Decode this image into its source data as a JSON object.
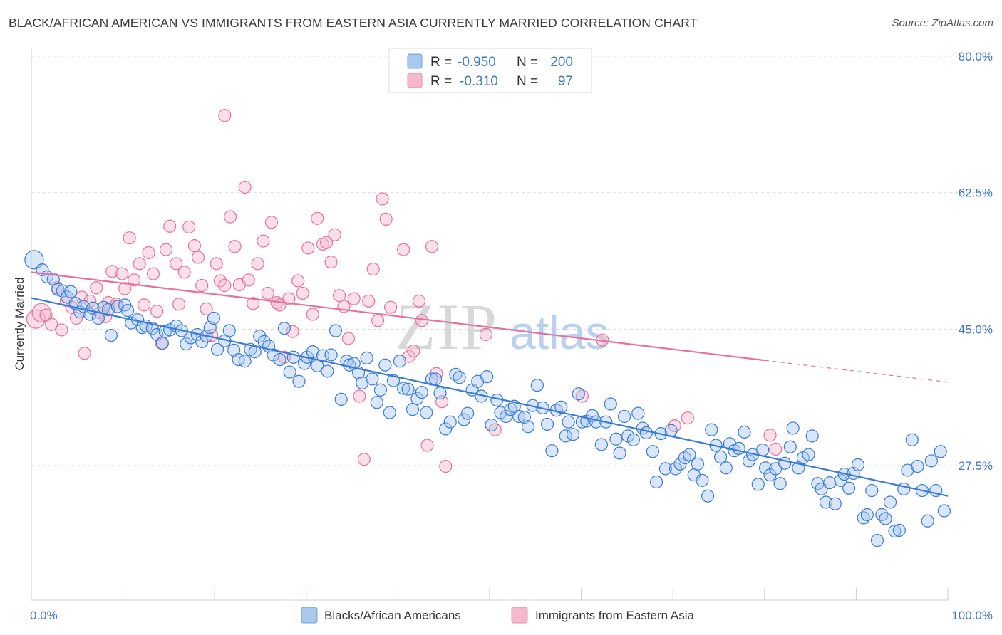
{
  "title": "BLACK/AFRICAN AMERICAN VS IMMIGRANTS FROM EASTERN ASIA CURRENTLY MARRIED CORRELATION CHART",
  "source": "Source: ZipAtlas.com",
  "watermark": {
    "part1": "ZIP",
    "part2": "atlas"
  },
  "colors": {
    "blue": "#3a7bd5",
    "blue_fill": "#a9c8ef",
    "pink": "#e8709c",
    "pink_fill": "#f5b8cc",
    "tick": "#3a78c9"
  },
  "legend_top": [
    {
      "r_label": "R =",
      "r_value": "-0.950",
      "n_label": "N =",
      "n_value": "200"
    },
    {
      "r_label": "R =",
      "r_value": "-0.310",
      "n_label": "N =",
      "n_value": "97"
    }
  ],
  "chart_data": {
    "type": "scatter",
    "title": "BLACK/AFRICAN AMERICAN VS IMMIGRANTS FROM EASTERN ASIA CURRENTLY MARRIED CORRELATION CHART",
    "xlabel": "",
    "ylabel": "Currently Married",
    "xlim": [
      0,
      100
    ],
    "ylim": [
      14,
      82
    ],
    "x_tick_labels": [
      "0.0%",
      "100.0%"
    ],
    "y_ticks": [
      27.5,
      45.0,
      62.5,
      80.0
    ],
    "y_tick_labels": [
      "27.5%",
      "45.0%",
      "62.5%",
      "80.0%"
    ],
    "grid": "horizontal dashed",
    "legend_position": "bottom",
    "series": [
      {
        "name": "Blacks/African Americans",
        "color": "#3a7bd5",
        "r": -0.95,
        "n": 200,
        "trend": {
          "x": [
            0,
            100
          ],
          "y": [
            49.0,
            23.6
          ]
        },
        "points": [
          [
            0.3,
            53.9
          ],
          [
            1.2,
            52.6
          ],
          [
            1.7,
            51.7
          ],
          [
            2.4,
            51.4
          ],
          [
            2.9,
            50.1
          ],
          [
            3.4,
            49.9
          ],
          [
            3.9,
            49.1
          ],
          [
            4.3,
            49.8
          ],
          [
            4.8,
            48.3
          ],
          [
            5.3,
            47.2
          ],
          [
            5.7,
            47.9
          ],
          [
            6.4,
            46.9
          ],
          [
            6.7,
            47.7
          ],
          [
            7.3,
            46.4
          ],
          [
            7.9,
            47.8
          ],
          [
            8.4,
            47.5
          ],
          [
            8.7,
            44.2
          ],
          [
            9.4,
            47.9
          ],
          [
            10.2,
            48.1
          ],
          [
            10.5,
            47.4
          ],
          [
            10.9,
            45.8
          ],
          [
            11.6,
            46.2
          ],
          [
            12.1,
            45.2
          ],
          [
            12.5,
            45.4
          ],
          [
            13.2,
            45.1
          ],
          [
            13.7,
            44.3
          ],
          [
            14.3,
            43.2
          ],
          [
            14.6,
            44.7
          ],
          [
            15.1,
            44.9
          ],
          [
            15.8,
            45.4
          ],
          [
            16.4,
            44.8
          ],
          [
            16.9,
            43.1
          ],
          [
            17.4,
            43.9
          ],
          [
            18.1,
            44.3
          ],
          [
            18.6,
            43.4
          ],
          [
            19.1,
            44.1
          ],
          [
            19.5,
            45.2
          ],
          [
            19.9,
            46.4
          ],
          [
            20.3,
            42.4
          ],
          [
            21.1,
            43.5
          ],
          [
            21.6,
            44.8
          ],
          [
            22.1,
            42.3
          ],
          [
            22.6,
            41.1
          ],
          [
            23.3,
            40.9
          ],
          [
            23.9,
            42.4
          ],
          [
            24.4,
            42.1
          ],
          [
            24.9,
            44.1
          ],
          [
            25.4,
            43.4
          ],
          [
            25.9,
            42.8
          ],
          [
            26.4,
            41.7
          ],
          [
            27.1,
            41.1
          ],
          [
            27.6,
            45.1
          ],
          [
            28.2,
            39.5
          ],
          [
            28.6,
            41.4
          ],
          [
            29.2,
            38.3
          ],
          [
            29.8,
            40.6
          ],
          [
            30.1,
            41.4
          ],
          [
            30.7,
            42.1
          ],
          [
            31.2,
            40.3
          ],
          [
            31.8,
            41.6
          ],
          [
            32.3,
            39.6
          ],
          [
            32.7,
            41.7
          ],
          [
            33.2,
            44.8
          ],
          [
            33.8,
            36.0
          ],
          [
            34.4,
            40.9
          ],
          [
            34.7,
            40.4
          ],
          [
            35.2,
            40.6
          ],
          [
            35.7,
            39.4
          ],
          [
            36.1,
            38.1
          ],
          [
            36.6,
            41.3
          ],
          [
            37.2,
            38.6
          ],
          [
            37.7,
            35.6
          ],
          [
            38.1,
            37.2
          ],
          [
            38.6,
            40.4
          ],
          [
            39.1,
            34.3
          ],
          [
            39.5,
            38.4
          ],
          [
            40.2,
            40.9
          ],
          [
            40.6,
            37.4
          ],
          [
            41.1,
            37.3
          ],
          [
            41.6,
            34.7
          ],
          [
            42.1,
            36.1
          ],
          [
            42.6,
            36.9
          ],
          [
            43.1,
            34.3
          ],
          [
            43.7,
            38.6
          ],
          [
            44.1,
            38.6
          ],
          [
            44.6,
            36.8
          ],
          [
            45.2,
            32.2
          ],
          [
            45.7,
            33.1
          ],
          [
            46.3,
            39.2
          ],
          [
            46.7,
            38.8
          ],
          [
            47.2,
            33.4
          ],
          [
            47.6,
            34.2
          ],
          [
            48.1,
            37.2
          ],
          [
            48.7,
            38.3
          ],
          [
            49.1,
            36.4
          ],
          [
            49.7,
            38.9
          ],
          [
            50.2,
            32.7
          ],
          [
            50.8,
            35.9
          ],
          [
            51.2,
            34.3
          ],
          [
            51.8,
            33.8
          ],
          [
            52.3,
            34.7
          ],
          [
            52.7,
            35.1
          ],
          [
            53.2,
            33.8
          ],
          [
            53.8,
            33.7
          ],
          [
            54.2,
            32.5
          ],
          [
            54.7,
            35.2
          ],
          [
            55.2,
            37.8
          ],
          [
            55.8,
            34.9
          ],
          [
            56.3,
            32.8
          ],
          [
            56.8,
            29.4
          ],
          [
            57.3,
            34.6
          ],
          [
            57.8,
            35.0
          ],
          [
            58.3,
            31.3
          ],
          [
            58.6,
            33.1
          ],
          [
            59.1,
            31.5
          ],
          [
            59.7,
            36.7
          ],
          [
            60.1,
            33.1
          ],
          [
            60.6,
            33.2
          ],
          [
            61.2,
            33.9
          ],
          [
            61.6,
            33.1
          ],
          [
            62.2,
            30.2
          ],
          [
            62.7,
            33.1
          ],
          [
            63.2,
            35.4
          ],
          [
            63.8,
            30.9
          ],
          [
            64.2,
            29.1
          ],
          [
            64.7,
            33.8
          ],
          [
            65.1,
            31.3
          ],
          [
            65.7,
            30.8
          ],
          [
            66.2,
            34.2
          ],
          [
            66.7,
            32.3
          ],
          [
            67.1,
            31.7
          ],
          [
            67.8,
            29.3
          ],
          [
            68.2,
            25.4
          ],
          [
            68.7,
            31.6
          ],
          [
            69.2,
            27.1
          ],
          [
            69.8,
            32.0
          ],
          [
            70.3,
            27.1
          ],
          [
            70.8,
            27.7
          ],
          [
            71.3,
            28.5
          ],
          [
            71.8,
            28.9
          ],
          [
            72.3,
            26.3
          ],
          [
            72.7,
            27.7
          ],
          [
            73.2,
            25.6
          ],
          [
            73.8,
            23.6
          ],
          [
            74.2,
            32.1
          ],
          [
            74.7,
            30.1
          ],
          [
            75.2,
            28.6
          ],
          [
            75.8,
            27.2
          ],
          [
            76.2,
            30.3
          ],
          [
            76.7,
            29.4
          ],
          [
            77.2,
            29.7
          ],
          [
            77.8,
            31.8
          ],
          [
            78.3,
            28.1
          ],
          [
            78.7,
            28.9
          ],
          [
            79.3,
            25.1
          ],
          [
            79.8,
            29.5
          ],
          [
            80.1,
            27.2
          ],
          [
            80.6,
            26.3
          ],
          [
            81.2,
            27.1
          ],
          [
            81.7,
            25.2
          ],
          [
            82.2,
            27.8
          ],
          [
            82.8,
            29.9
          ],
          [
            83.1,
            32.3
          ],
          [
            83.7,
            27.2
          ],
          [
            84.2,
            28.5
          ],
          [
            84.8,
            28.9
          ],
          [
            85.2,
            31.3
          ],
          [
            85.8,
            25.2
          ],
          [
            86.2,
            24.5
          ],
          [
            86.7,
            22.8
          ],
          [
            87.1,
            25.3
          ],
          [
            87.7,
            22.6
          ],
          [
            88.3,
            25.6
          ],
          [
            88.7,
            26.4
          ],
          [
            89.2,
            24.6
          ],
          [
            89.7,
            26.5
          ],
          [
            90.2,
            27.6
          ],
          [
            90.8,
            20.8
          ],
          [
            91.2,
            21.2
          ],
          [
            91.7,
            24.3
          ],
          [
            92.3,
            17.9
          ],
          [
            92.8,
            21.2
          ],
          [
            93.2,
            20.7
          ],
          [
            93.7,
            22.8
          ],
          [
            94.2,
            19.1
          ],
          [
            94.7,
            19.2
          ],
          [
            95.2,
            24.5
          ],
          [
            95.6,
            26.9
          ],
          [
            96.1,
            30.8
          ],
          [
            96.7,
            27.4
          ],
          [
            97.2,
            24.3
          ],
          [
            97.8,
            20.4
          ],
          [
            98.2,
            28.1
          ],
          [
            98.7,
            24.3
          ],
          [
            99.2,
            29.3
          ],
          [
            99.6,
            21.7
          ]
        ]
      },
      {
        "name": "Immigrants from Eastern Asia",
        "color": "#e8709c",
        "r": -0.31,
        "n": 97,
        "trend": {
          "x": [
            0,
            80
          ],
          "y": [
            52.3,
            41.0
          ]
        },
        "trend_dashed_end": {
          "x": 100,
          "y": 38.2
        },
        "points": [
          [
            0.5,
            46.3
          ],
          [
            1.1,
            47.1
          ],
          [
            1.6,
            46.8
          ],
          [
            2.2,
            45.6
          ],
          [
            2.8,
            50.3
          ],
          [
            3.3,
            44.9
          ],
          [
            3.8,
            48.7
          ],
          [
            4.4,
            47.8
          ],
          [
            4.9,
            46.4
          ],
          [
            5.5,
            49.1
          ],
          [
            5.8,
            41.9
          ],
          [
            6.4,
            48.6
          ],
          [
            7.1,
            50.3
          ],
          [
            7.5,
            47.1
          ],
          [
            8.1,
            46.6
          ],
          [
            8.4,
            48.4
          ],
          [
            8.8,
            52.4
          ],
          [
            9.3,
            48.2
          ],
          [
            9.9,
            52.1
          ],
          [
            10.2,
            50.2
          ],
          [
            10.7,
            56.7
          ],
          [
            11.2,
            51.3
          ],
          [
            11.8,
            53.4
          ],
          [
            12.3,
            48.1
          ],
          [
            12.8,
            54.8
          ],
          [
            13.3,
            52.1
          ],
          [
            13.7,
            47.3
          ],
          [
            14.2,
            43.2
          ],
          [
            14.7,
            55.2
          ],
          [
            15.1,
            58.2
          ],
          [
            15.8,
            53.4
          ],
          [
            16.1,
            48.2
          ],
          [
            16.7,
            52.3
          ],
          [
            17.2,
            58.1
          ],
          [
            17.8,
            55.7
          ],
          [
            18.2,
            54.2
          ],
          [
            18.6,
            50.6
          ],
          [
            19.1,
            47.6
          ],
          [
            19.7,
            44.2
          ],
          [
            20.2,
            53.4
          ],
          [
            20.6,
            51.2
          ],
          [
            21.1,
            50.6
          ],
          [
            21.7,
            59.4
          ],
          [
            22.2,
            55.6
          ],
          [
            22.7,
            50.7
          ],
          [
            23.3,
            63.2
          ],
          [
            23.7,
            51.3
          ],
          [
            24.2,
            48.3
          ],
          [
            24.7,
            53.4
          ],
          [
            25.3,
            56.3
          ],
          [
            25.8,
            49.6
          ],
          [
            26.2,
            58.7
          ],
          [
            26.8,
            48.4
          ],
          [
            27.1,
            48.1
          ],
          [
            27.6,
            41.4
          ],
          [
            28.1,
            48.9
          ],
          [
            28.5,
            44.7
          ],
          [
            29.1,
            51.2
          ],
          [
            29.6,
            49.6
          ],
          [
            30.2,
            55.4
          ],
          [
            30.7,
            46.9
          ],
          [
            31.2,
            59.2
          ],
          [
            31.8,
            55.9
          ],
          [
            32.2,
            56.1
          ],
          [
            32.7,
            53.6
          ],
          [
            33.1,
            57.1
          ],
          [
            33.6,
            49.3
          ],
          [
            34.1,
            47.9
          ],
          [
            34.6,
            43.8
          ],
          [
            35.2,
            48.9
          ],
          [
            35.8,
            36.4
          ],
          [
            36.3,
            28.3
          ],
          [
            36.8,
            48.6
          ],
          [
            37.3,
            52.7
          ],
          [
            37.8,
            46.1
          ],
          [
            38.3,
            61.7
          ],
          [
            38.7,
            59.1
          ],
          [
            39.2,
            47.8
          ],
          [
            40.6,
            55.2
          ],
          [
            41.2,
            41.5
          ],
          [
            41.7,
            42.2
          ],
          [
            42.3,
            48.6
          ],
          [
            42.6,
            46.1
          ],
          [
            43.2,
            30.1
          ],
          [
            43.7,
            55.6
          ],
          [
            44.2,
            39.3
          ],
          [
            44.8,
            35.7
          ],
          [
            45.2,
            27.4
          ],
          [
            49.6,
            44.3
          ],
          [
            50.6,
            32.1
          ],
          [
            60.1,
            36.4
          ],
          [
            62.3,
            43.6
          ],
          [
            70.2,
            32.6
          ],
          [
            71.6,
            33.6
          ],
          [
            80.6,
            31.4
          ],
          [
            81.2,
            29.6
          ],
          [
            21.1,
            72.4
          ]
        ]
      }
    ]
  }
}
